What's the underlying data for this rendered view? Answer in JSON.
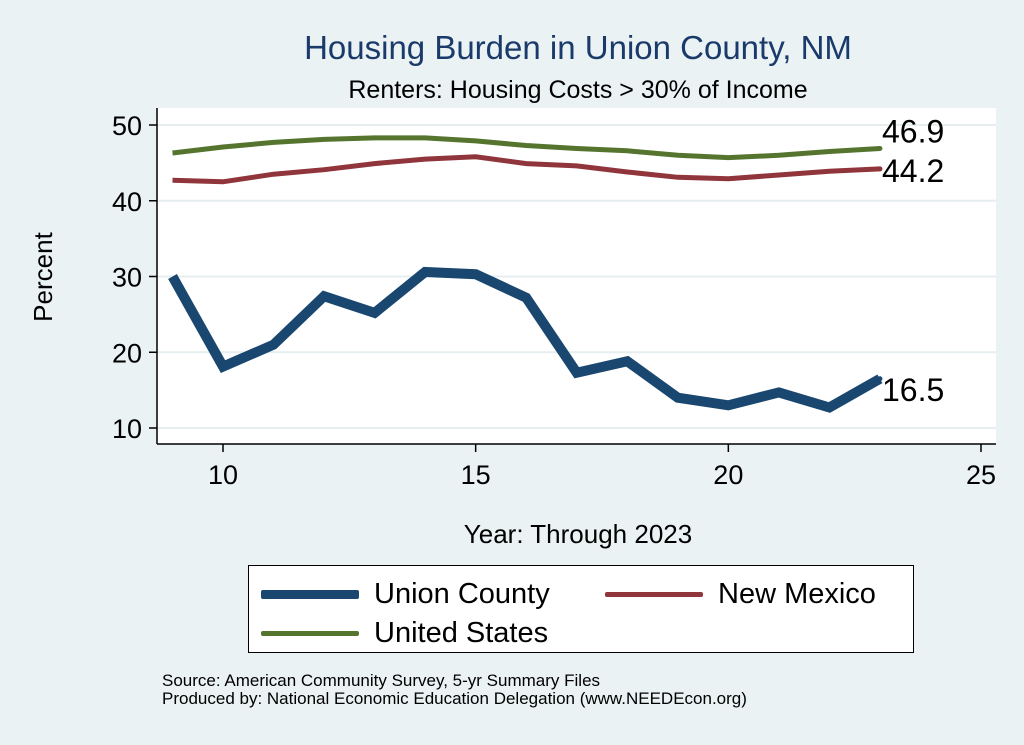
{
  "chart_data": {
    "type": "line",
    "title": "Housing Burden in Union County, NM",
    "subtitle": "Renters: Housing Costs > 30% of Income",
    "xlabel": "Year: Through 2023",
    "ylabel": "Percent",
    "xlim": [
      9,
      25
    ],
    "ylim": [
      8,
      51
    ],
    "xticks": [
      10,
      15,
      20,
      25
    ],
    "yticks": [
      10,
      20,
      30,
      40,
      50
    ],
    "grid": true,
    "x": [
      9,
      10,
      11,
      12,
      13,
      14,
      15,
      16,
      17,
      18,
      19,
      20,
      21,
      22,
      23
    ],
    "series": [
      {
        "name": "Union County",
        "color": "#1a476f",
        "values": [
          30.0,
          18.1,
          21.0,
          27.4,
          25.2,
          30.6,
          30.3,
          27.2,
          17.3,
          18.8,
          14.0,
          13.0,
          14.7,
          12.7,
          16.5
        ],
        "end_label": "16.5"
      },
      {
        "name": "New Mexico",
        "color": "#90353b",
        "values": [
          42.7,
          42.5,
          43.5,
          44.1,
          44.9,
          45.5,
          45.8,
          44.9,
          44.6,
          43.8,
          43.1,
          42.9,
          43.4,
          43.9,
          44.2
        ],
        "end_label": "44.2"
      },
      {
        "name": "United States",
        "color": "#55752f",
        "values": [
          46.3,
          47.1,
          47.7,
          48.1,
          48.3,
          48.3,
          47.9,
          47.3,
          46.9,
          46.6,
          46.0,
          45.7,
          46.0,
          46.5,
          46.9
        ],
        "end_label": "46.9"
      }
    ],
    "legend_position": "bottom",
    "source_lines": [
      "Source: American Community Survey, 5-yr Summary Files",
      "Produced by: National Economic Education Delegation (www.NEEDEcon.org)"
    ]
  }
}
